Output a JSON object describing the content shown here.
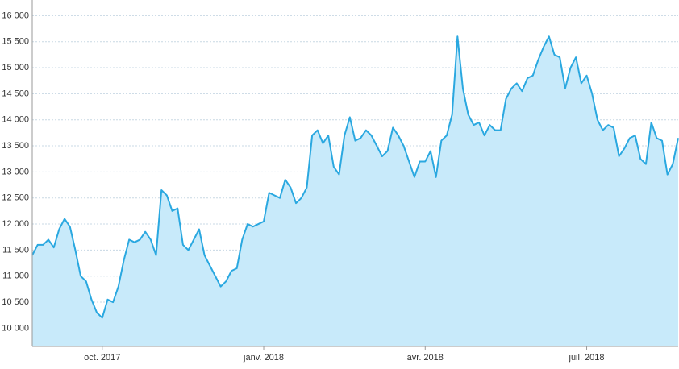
{
  "chart_data": {
    "type": "area",
    "categories": [
      null,
      null,
      null,
      null,
      null,
      null,
      null,
      null,
      null,
      null,
      null,
      null,
      null,
      "oct. 2017",
      null,
      null,
      null,
      null,
      null,
      null,
      null,
      null,
      null,
      null,
      null,
      null,
      null,
      null,
      null,
      null,
      null,
      null,
      null,
      null,
      null,
      null,
      null,
      null,
      null,
      null,
      null,
      null,
      null,
      "janv. 2018",
      null,
      null,
      null,
      null,
      null,
      null,
      null,
      null,
      null,
      null,
      null,
      null,
      null,
      null,
      null,
      null,
      null,
      null,
      null,
      null,
      null,
      null,
      null,
      null,
      null,
      null,
      null,
      null,
      null,
      "avr. 2018",
      null,
      null,
      null,
      null,
      null,
      null,
      null,
      null,
      null,
      null,
      null,
      null,
      null,
      null,
      null,
      null,
      null,
      null,
      null,
      null,
      null,
      null,
      null,
      null,
      null,
      null,
      null,
      null,
      null,
      "juil. 2018",
      null,
      null,
      null,
      null,
      null,
      null,
      null,
      null,
      null,
      null,
      null,
      null,
      null,
      null,
      null,
      null,
      null
    ],
    "values": [
      11400,
      11600,
      11600,
      11700,
      11550,
      11900,
      12100,
      11950,
      11500,
      11000,
      10900,
      10550,
      10300,
      10200,
      10550,
      10500,
      10800,
      11300,
      11700,
      11650,
      11700,
      11850,
      11700,
      11400,
      12650,
      12550,
      12250,
      12300,
      11600,
      11500,
      11700,
      11900,
      11400,
      11200,
      11000,
      10800,
      10900,
      11100,
      11150,
      11700,
      12000,
      11950,
      12000,
      12050,
      12600,
      12550,
      12500,
      12850,
      12700,
      12400,
      12500,
      12700,
      13700,
      13800,
      13550,
      13700,
      13100,
      12950,
      13700,
      14050,
      13600,
      13650,
      13800,
      13700,
      13500,
      13300,
      13400,
      13850,
      13700,
      13500,
      13200,
      12900,
      13200,
      13200,
      13400,
      12900,
      13600,
      13700,
      14100,
      15600,
      14600,
      14100,
      13900,
      13950,
      13700,
      13900,
      13800,
      13800,
      14400,
      14600,
      14700,
      14550,
      14800,
      14850,
      15150,
      15400,
      15600,
      15250,
      15200,
      14600,
      15000,
      15200,
      14700,
      14850,
      14500,
      14000,
      13800,
      13900,
      13850,
      13300,
      13450,
      13650,
      13700,
      13250,
      13150,
      13950,
      13650,
      13600,
      12950,
      13150,
      13650
    ],
    "color": "#2aa8e0",
    "fill": "#c8eafa",
    "ylim": [
      9650,
      16300
    ],
    "yticks": [
      {
        "value": 10000,
        "label": "10 000"
      },
      {
        "value": 10500,
        "label": "10 500"
      },
      {
        "value": 11000,
        "label": "11 000"
      },
      {
        "value": 11500,
        "label": "11 500"
      },
      {
        "value": 12000,
        "label": "12 000"
      },
      {
        "value": 12500,
        "label": "12 500"
      },
      {
        "value": 13000,
        "label": "13 000"
      },
      {
        "value": 13500,
        "label": "13 500"
      },
      {
        "value": 14000,
        "label": "14 000"
      },
      {
        "value": 14500,
        "label": "14 500"
      },
      {
        "value": 15000,
        "label": "15 000"
      },
      {
        "value": 15500,
        "label": "15 500"
      },
      {
        "value": 16000,
        "label": "16 000"
      }
    ],
    "grid": true
  }
}
